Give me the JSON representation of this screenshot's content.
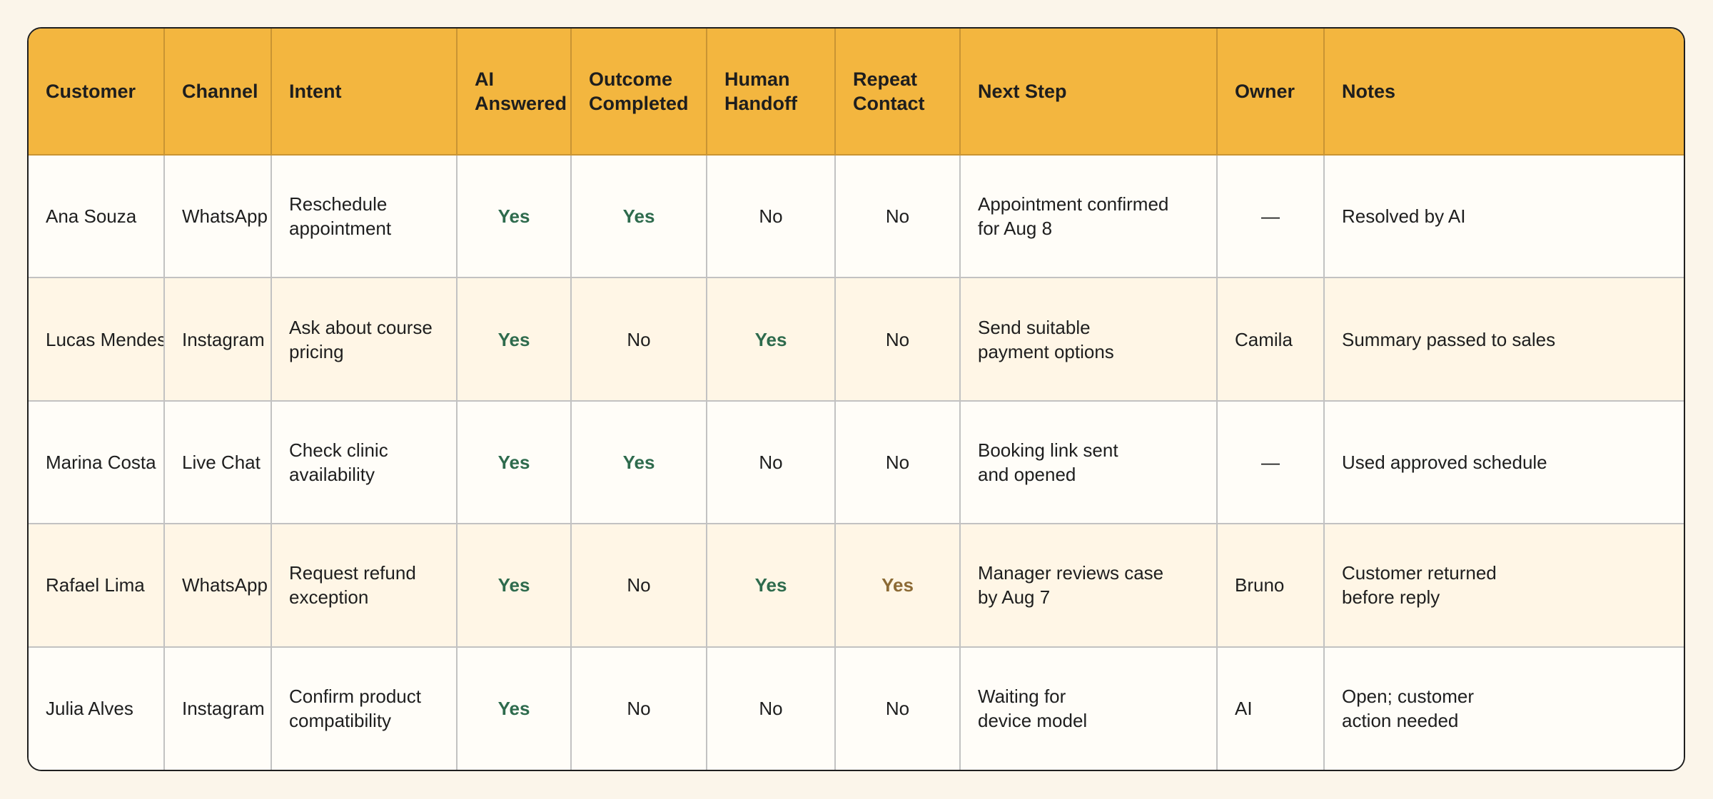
{
  "headers": {
    "customer": "Customer",
    "channel": "Channel",
    "intent": "Intent",
    "ai_answered": "AI\nAnswered",
    "outcome_completed": "Outcome\nCompleted",
    "human_handoff": "Human\nHandoff",
    "repeat_contact": "Repeat\nContact",
    "next_step": "Next Step",
    "owner": "Owner",
    "notes": "Notes"
  },
  "rows": [
    {
      "customer": "Ana Souza",
      "channel": "WhatsApp",
      "intent": "Reschedule\nappointment",
      "ai_answered": "Yes",
      "outcome_completed": "Yes",
      "human_handoff": "No",
      "repeat_contact": "No",
      "next_step": "Appointment confirmed\nfor Aug 8",
      "owner": "—",
      "notes": "Resolved by AI"
    },
    {
      "customer": "Lucas Mendes",
      "channel": "Instagram",
      "intent": "Ask about course\npricing",
      "ai_answered": "Yes",
      "outcome_completed": "No",
      "human_handoff": "Yes",
      "repeat_contact": "No",
      "next_step": "Send suitable\npayment options",
      "owner": "Camila",
      "notes": "Summary passed to sales"
    },
    {
      "customer": "Marina Costa",
      "channel": "Live Chat",
      "intent": "Check clinic\navailability",
      "ai_answered": "Yes",
      "outcome_completed": "Yes",
      "human_handoff": "No",
      "repeat_contact": "No",
      "next_step": "Booking link sent\nand opened",
      "owner": "—",
      "notes": "Used approved schedule"
    },
    {
      "customer": "Rafael Lima",
      "channel": "WhatsApp",
      "intent": "Request refund\nexception",
      "ai_answered": "Yes",
      "outcome_completed": "No",
      "human_handoff": "Yes",
      "repeat_contact": "Yes",
      "next_step": "Manager reviews case\nby Aug 7",
      "owner": "Bruno",
      "notes": "Customer returned\nbefore reply"
    },
    {
      "customer": "Julia Alves",
      "channel": "Instagram",
      "intent": "Confirm product\ncompatibility",
      "ai_answered": "Yes",
      "outcome_completed": "No",
      "human_handoff": "No",
      "repeat_contact": "No",
      "next_step": "Waiting for\ndevice model",
      "owner": "AI",
      "notes": "Open; customer\naction needed"
    }
  ],
  "colors": {
    "header_bg": "#f3b63f",
    "page_bg": "#fbf5ea",
    "row_alt_bg": "#fff6e6",
    "yes_positive": "#2e6b4d",
    "yes_warning": "#8c6a35"
  }
}
